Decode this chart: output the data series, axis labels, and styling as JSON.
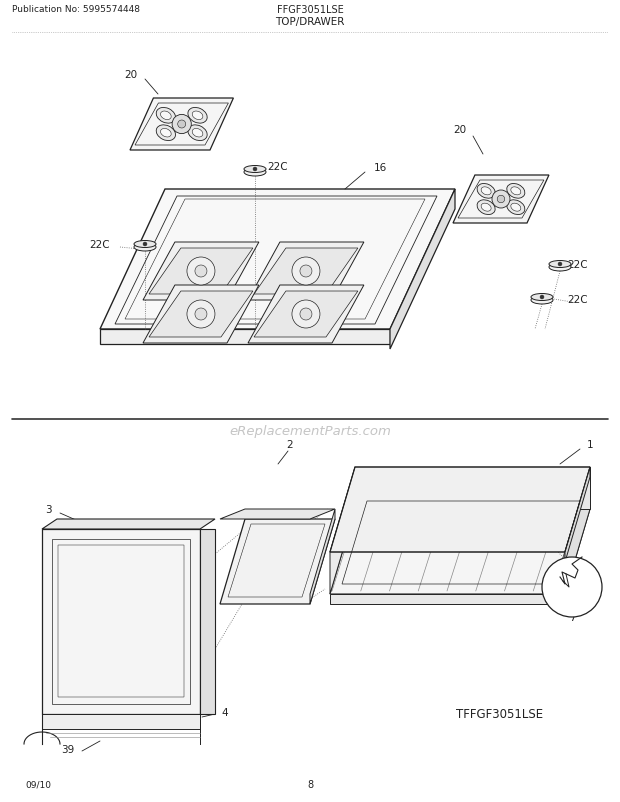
{
  "title_left": "Publication No: 5995574448",
  "title_center": "FFGF3051LSE",
  "title_section": "TOP/DRAWER",
  "footer_left": "09/10",
  "footer_center": "8",
  "model_bottom": "TFFGF3051LSE",
  "bg_color": "#ffffff",
  "line_color": "#222222",
  "text_color": "#222222",
  "watermark_text": "eReplacementParts.com",
  "fig_width": 6.2,
  "fig_height": 8.03,
  "dpi": 100
}
